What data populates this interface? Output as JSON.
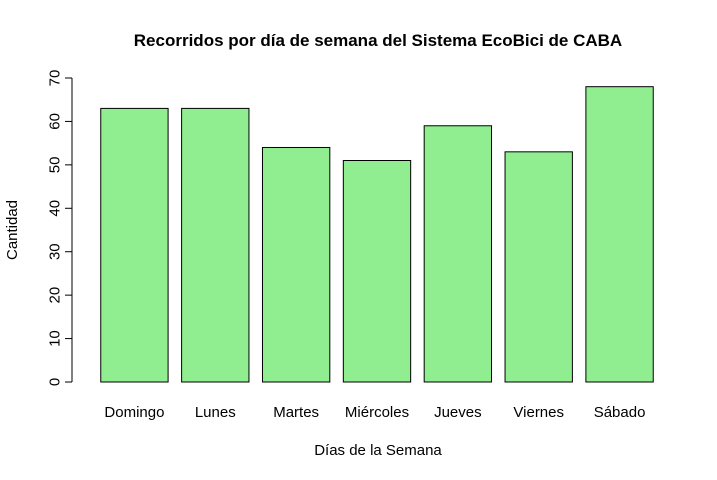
{
  "chart_data": {
    "type": "bar",
    "title": "Recorridos por día de semana del Sistema EcoBici de CABA",
    "xlabel": "Días de la Semana",
    "ylabel": "Cantidad",
    "categories": [
      "Domingo",
      "Lunes",
      "Martes",
      "Miércoles",
      "Jueves",
      "Viernes",
      "Sábado"
    ],
    "values": [
      63,
      63,
      54,
      51,
      59,
      53,
      68
    ],
    "ylim": [
      0,
      70
    ],
    "yticks": [
      0,
      10,
      20,
      30,
      40,
      50,
      60,
      70
    ],
    "bar_color": "#90EE90",
    "border_color": "#000000",
    "grid": false,
    "legend": "none"
  }
}
